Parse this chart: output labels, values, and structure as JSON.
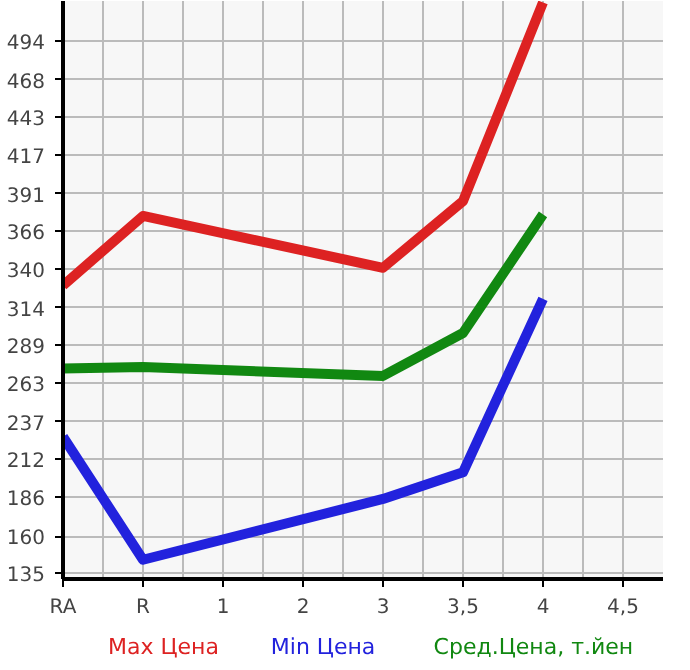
{
  "chart_data": {
    "type": "line",
    "categories": [
      "RA",
      "R",
      "1",
      "2",
      "3",
      "3,5",
      "4",
      "4,5"
    ],
    "ylim": [
      131,
      521
    ],
    "yticks": [
      135,
      160,
      186,
      212,
      237,
      263,
      289,
      314,
      340,
      366,
      391,
      417,
      443,
      468,
      494
    ],
    "grid": true,
    "legend": "bottom",
    "line_style": "solid",
    "marker": "none",
    "series": [
      {
        "name": "Max Цена",
        "color": "#dd2222",
        "values": [
          329,
          376,
          null,
          null,
          341,
          386,
          520,
          null
        ]
      },
      {
        "name": "Min Цена",
        "color": "#2222dd",
        "values": [
          227,
          144,
          null,
          null,
          185,
          203,
          320,
          null
        ]
      },
      {
        "name": "Сред.Цена, т.йен",
        "color": "#118811",
        "values": [
          273,
          274,
          null,
          null,
          268,
          297,
          377,
          null
        ]
      }
    ]
  }
}
